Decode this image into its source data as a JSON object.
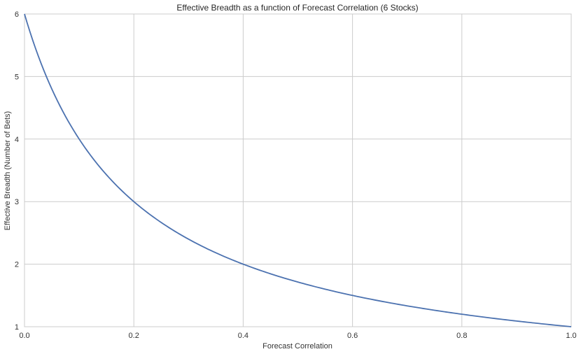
{
  "chart_data": {
    "type": "line",
    "title": "Effective Breadth as a function of Forecast Correlation (6 Stocks)",
    "xlabel": "Forecast Correlation",
    "ylabel": "Effective Breadth (Number of Bets)",
    "xlim": [
      0.0,
      1.0
    ],
    "ylim": [
      1,
      6
    ],
    "x_ticks": [
      "0.0",
      "0.2",
      "0.4",
      "0.6",
      "0.8",
      "1.0"
    ],
    "y_ticks": [
      "1",
      "2",
      "3",
      "4",
      "5",
      "6"
    ],
    "grid": true,
    "legend": null,
    "series": [
      {
        "name": "Effective Breadth",
        "color": "#4c72b0",
        "x": [
          0.0,
          0.05,
          0.1,
          0.15,
          0.2,
          0.25,
          0.3,
          0.35,
          0.4,
          0.45,
          0.5,
          0.55,
          0.6,
          0.65,
          0.7,
          0.75,
          0.8,
          0.85,
          0.9,
          0.95,
          1.0
        ],
        "values": [
          6.0,
          4.8,
          4.0,
          3.43,
          3.0,
          2.67,
          2.4,
          2.18,
          2.0,
          1.85,
          1.71,
          1.6,
          1.5,
          1.41,
          1.33,
          1.26,
          1.2,
          1.14,
          1.09,
          1.04,
          1.0
        ]
      }
    ]
  }
}
